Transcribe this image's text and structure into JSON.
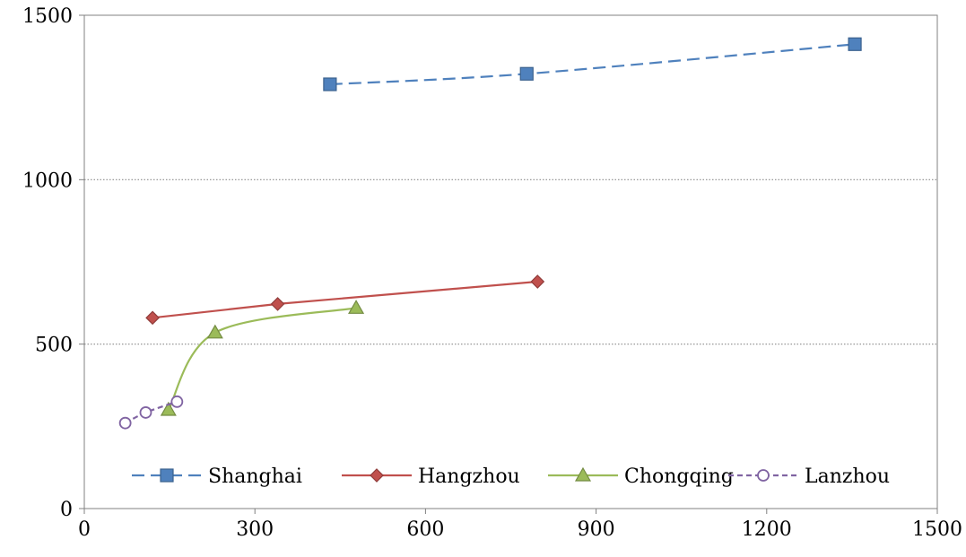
{
  "chart_data": {
    "type": "scatter",
    "title": "",
    "xlabel": "",
    "ylabel": "",
    "xlim": [
      0,
      1500
    ],
    "ylim": [
      0,
      1500
    ],
    "xticks": [
      0,
      300,
      600,
      900,
      1200,
      1500
    ],
    "yticks": [
      0,
      500,
      1000,
      1500
    ],
    "x_tick_labels": [
      "0",
      "300",
      "600",
      "900",
      "1200",
      "1500"
    ],
    "y_tick_labels": [
      "0",
      "500",
      "1000",
      "1500"
    ],
    "grid": "horizontal dotted",
    "legend_position": "bottom inside",
    "series": [
      {
        "name": "Shanghai",
        "color": "#4f81bd",
        "marker": "square",
        "line_style": "dashed",
        "smooth": true,
        "x": [
          432,
          778,
          1355
        ],
        "y": [
          1290,
          1322,
          1412
        ]
      },
      {
        "name": "Hangzhou",
        "color": "#c0504d",
        "marker": "diamond",
        "line_style": "solid",
        "smooth": false,
        "x": [
          120,
          340,
          797
        ],
        "y": [
          580,
          622,
          690
        ]
      },
      {
        "name": "Chongqing",
        "color": "#9bbb59",
        "marker": "triangle",
        "line_style": "solid",
        "smooth": true,
        "x": [
          148,
          230,
          478
        ],
        "y": [
          300,
          535,
          610
        ]
      },
      {
        "name": "Lanzhou",
        "color": "#8064a2",
        "marker": "open-circle",
        "line_style": "dashed",
        "smooth": true,
        "x": [
          72,
          108,
          163
        ],
        "y": [
          260,
          292,
          325
        ]
      }
    ]
  }
}
